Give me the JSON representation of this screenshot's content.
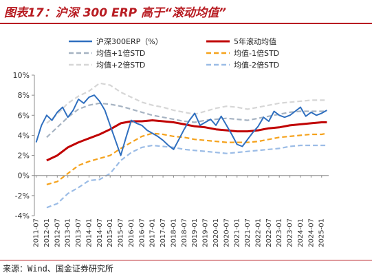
{
  "figure": {
    "title": "图表17：沪深 300 ERP 高于“滚动均值”",
    "source": "来源：Wind、国金证券研究所"
  },
  "chart_data": {
    "type": "line",
    "ylim": [
      -4,
      10
    ],
    "yticks": [
      -4,
      -2,
      0,
      2,
      4,
      6,
      8,
      10
    ],
    "ytick_labels": [
      "-4%",
      "-2%",
      "0%",
      "2%",
      "4%",
      "6%",
      "8%",
      "10%"
    ],
    "xtick_labels": [
      "2011-07",
      "2012-01",
      "2012-07",
      "2013-01",
      "2013-07",
      "2014-01",
      "2014-07",
      "2015-01",
      "2015-07",
      "2016-01",
      "2016-07",
      "2017-01",
      "2017-07",
      "2018-01",
      "2018-07",
      "2019-01",
      "2019-07",
      "2020-01",
      "2020-07",
      "2021-01",
      "2021-07",
      "2022-01",
      "2022-07",
      "2023-01",
      "2023-07",
      "2024-01",
      "2024-07",
      "2025-01"
    ],
    "legend": {
      "placement": "top",
      "columns": 2
    },
    "series": [
      {
        "name": "沪深300ERP（%）",
        "color": "#2f6fbf",
        "style": "solid",
        "points": [
          [
            "2011-07",
            3.3
          ],
          [
            "2011-10",
            5.0
          ],
          [
            "2012-01",
            6.0
          ],
          [
            "2012-04",
            5.5
          ],
          [
            "2012-07",
            6.3
          ],
          [
            "2012-10",
            6.8
          ],
          [
            "2013-01",
            5.8
          ],
          [
            "2013-04",
            6.5
          ],
          [
            "2013-07",
            7.6
          ],
          [
            "2013-10",
            7.2
          ],
          [
            "2014-01",
            7.8
          ],
          [
            "2014-04",
            8.0
          ],
          [
            "2014-07",
            7.4
          ],
          [
            "2014-10",
            6.5
          ],
          [
            "2015-01",
            5.0
          ],
          [
            "2015-04",
            3.5
          ],
          [
            "2015-07",
            2.0
          ],
          [
            "2015-10",
            3.8
          ],
          [
            "2016-01",
            5.5
          ],
          [
            "2016-04",
            5.2
          ],
          [
            "2016-07",
            5.0
          ],
          [
            "2016-10",
            4.5
          ],
          [
            "2017-01",
            4.2
          ],
          [
            "2017-04",
            3.9
          ],
          [
            "2017-07",
            3.5
          ],
          [
            "2017-10",
            3.0
          ],
          [
            "2018-01",
            2.6
          ],
          [
            "2018-04",
            3.6
          ],
          [
            "2018-07",
            4.6
          ],
          [
            "2018-10",
            5.5
          ],
          [
            "2019-01",
            6.2
          ],
          [
            "2019-04",
            5.0
          ],
          [
            "2019-07",
            5.3
          ],
          [
            "2019-10",
            5.6
          ],
          [
            "2020-01",
            5.0
          ],
          [
            "2020-04",
            5.9
          ],
          [
            "2020-07",
            5.0
          ],
          [
            "2020-10",
            4.1
          ],
          [
            "2021-01",
            3.1
          ],
          [
            "2021-04",
            2.9
          ],
          [
            "2021-07",
            3.6
          ],
          [
            "2021-10",
            4.3
          ],
          [
            "2022-01",
            4.9
          ],
          [
            "2022-04",
            5.8
          ],
          [
            "2022-07",
            5.4
          ],
          [
            "2022-10",
            6.4
          ],
          [
            "2023-01",
            6.0
          ],
          [
            "2023-04",
            5.8
          ],
          [
            "2023-07",
            6.0
          ],
          [
            "2023-10",
            6.4
          ],
          [
            "2024-01",
            6.8
          ],
          [
            "2024-04",
            5.9
          ],
          [
            "2024-07",
            6.3
          ],
          [
            "2024-10",
            6.0
          ],
          [
            "2025-01",
            6.2
          ],
          [
            "2025-04",
            6.5
          ]
        ]
      },
      {
        "name": "5年滚动均值",
        "color": "#c00000",
        "style": "solid",
        "points": [
          [
            "2012-01",
            1.5
          ],
          [
            "2012-07",
            2.0
          ],
          [
            "2013-01",
            2.8
          ],
          [
            "2013-07",
            3.3
          ],
          [
            "2014-01",
            3.7
          ],
          [
            "2014-07",
            4.1
          ],
          [
            "2015-01",
            4.6
          ],
          [
            "2015-07",
            5.2
          ],
          [
            "2016-01",
            5.4
          ],
          [
            "2016-07",
            5.4
          ],
          [
            "2017-01",
            5.5
          ],
          [
            "2017-07",
            5.4
          ],
          [
            "2018-01",
            5.3
          ],
          [
            "2018-07",
            5.1
          ],
          [
            "2019-01",
            4.9
          ],
          [
            "2019-07",
            4.8
          ],
          [
            "2020-01",
            4.6
          ],
          [
            "2020-07",
            4.5
          ],
          [
            "2021-01",
            4.4
          ],
          [
            "2021-07",
            4.4
          ],
          [
            "2022-01",
            4.5
          ],
          [
            "2022-07",
            4.7
          ],
          [
            "2023-01",
            4.8
          ],
          [
            "2023-07",
            5.0
          ],
          [
            "2024-01",
            5.1
          ],
          [
            "2024-07",
            5.2
          ],
          [
            "2025-01",
            5.3
          ],
          [
            "2025-04",
            5.3
          ]
        ]
      },
      {
        "name": "均值+1倍STD",
        "color": "#a6b3c2",
        "style": "dashed",
        "points": [
          [
            "2012-01",
            3.8
          ],
          [
            "2012-07",
            4.8
          ],
          [
            "2013-01",
            5.8
          ],
          [
            "2013-07",
            6.6
          ],
          [
            "2014-01",
            7.0
          ],
          [
            "2014-07",
            7.2
          ],
          [
            "2015-01",
            7.1
          ],
          [
            "2015-07",
            6.9
          ],
          [
            "2016-01",
            6.6
          ],
          [
            "2016-07",
            6.3
          ],
          [
            "2017-01",
            6.0
          ],
          [
            "2017-07",
            5.8
          ],
          [
            "2018-01",
            5.6
          ],
          [
            "2018-07",
            5.4
          ],
          [
            "2019-01",
            5.3
          ],
          [
            "2019-07",
            5.5
          ],
          [
            "2020-01",
            5.6
          ],
          [
            "2020-07",
            5.7
          ],
          [
            "2021-01",
            5.6
          ],
          [
            "2021-07",
            5.5
          ],
          [
            "2022-01",
            5.7
          ],
          [
            "2022-07",
            5.9
          ],
          [
            "2023-01",
            6.1
          ],
          [
            "2023-07",
            6.3
          ],
          [
            "2024-01",
            6.4
          ],
          [
            "2024-07",
            6.4
          ],
          [
            "2025-01",
            6.4
          ],
          [
            "2025-04",
            6.4
          ]
        ]
      },
      {
        "name": "均值-1倍STD",
        "color": "#f5a21c",
        "style": "dashed",
        "points": [
          [
            "2012-01",
            -0.9
          ],
          [
            "2012-07",
            -0.6
          ],
          [
            "2013-01",
            0.2
          ],
          [
            "2013-07",
            1.0
          ],
          [
            "2014-01",
            1.4
          ],
          [
            "2014-07",
            1.7
          ],
          [
            "2015-01",
            2.0
          ],
          [
            "2015-07",
            2.7
          ],
          [
            "2016-01",
            3.3
          ],
          [
            "2016-07",
            3.9
          ],
          [
            "2017-01",
            4.2
          ],
          [
            "2017-07",
            4.1
          ],
          [
            "2018-01",
            3.9
          ],
          [
            "2018-07",
            3.8
          ],
          [
            "2019-01",
            3.6
          ],
          [
            "2019-07",
            3.5
          ],
          [
            "2020-01",
            3.4
          ],
          [
            "2020-07",
            3.3
          ],
          [
            "2021-01",
            3.3
          ],
          [
            "2021-07",
            3.3
          ],
          [
            "2022-01",
            3.4
          ],
          [
            "2022-07",
            3.6
          ],
          [
            "2023-01",
            3.8
          ],
          [
            "2023-07",
            3.9
          ],
          [
            "2024-01",
            4.0
          ],
          [
            "2024-07",
            4.1
          ],
          [
            "2025-01",
            4.1
          ],
          [
            "2025-04",
            4.2
          ]
        ]
      },
      {
        "name": "均值+2倍STD",
        "color": "#d6d6d6",
        "style": "dashed",
        "points": [
          [
            "2012-01",
            5.2
          ],
          [
            "2012-07",
            6.1
          ],
          [
            "2013-01",
            7.2
          ],
          [
            "2013-07",
            7.9
          ],
          [
            "2014-01",
            8.4
          ],
          [
            "2014-07",
            9.2
          ],
          [
            "2015-01",
            9.0
          ],
          [
            "2015-07",
            8.3
          ],
          [
            "2016-01",
            7.8
          ],
          [
            "2016-07",
            7.3
          ],
          [
            "2017-01",
            7.0
          ],
          [
            "2017-07",
            6.8
          ],
          [
            "2018-01",
            6.5
          ],
          [
            "2018-07",
            6.3
          ],
          [
            "2019-01",
            6.1
          ],
          [
            "2019-07",
            6.4
          ],
          [
            "2020-01",
            6.7
          ],
          [
            "2020-07",
            6.9
          ],
          [
            "2021-01",
            6.8
          ],
          [
            "2021-07",
            6.6
          ],
          [
            "2022-01",
            6.8
          ],
          [
            "2022-07",
            7.0
          ],
          [
            "2023-01",
            7.2
          ],
          [
            "2023-07",
            7.3
          ],
          [
            "2024-01",
            7.4
          ],
          [
            "2024-07",
            7.5
          ],
          [
            "2025-01",
            7.5
          ],
          [
            "2025-04",
            7.5
          ]
        ]
      },
      {
        "name": "均值-2倍STD",
        "color": "#9bbce6",
        "style": "dashed",
        "points": [
          [
            "2012-01",
            -3.2
          ],
          [
            "2012-07",
            -2.8
          ],
          [
            "2013-01",
            -1.8
          ],
          [
            "2013-07",
            -1.2
          ],
          [
            "2014-01",
            -0.5
          ],
          [
            "2014-07",
            -0.4
          ],
          [
            "2015-01",
            0.2
          ],
          [
            "2015-07",
            1.5
          ],
          [
            "2016-01",
            2.3
          ],
          [
            "2016-07",
            2.8
          ],
          [
            "2017-01",
            3.0
          ],
          [
            "2017-07",
            2.9
          ],
          [
            "2018-01",
            2.8
          ],
          [
            "2018-07",
            2.6
          ],
          [
            "2019-01",
            2.5
          ],
          [
            "2019-07",
            2.4
          ],
          [
            "2020-01",
            2.3
          ],
          [
            "2020-07",
            2.2
          ],
          [
            "2021-01",
            2.3
          ],
          [
            "2021-07",
            2.4
          ],
          [
            "2022-01",
            2.5
          ],
          [
            "2022-07",
            2.6
          ],
          [
            "2023-01",
            2.7
          ],
          [
            "2023-07",
            2.9
          ],
          [
            "2024-01",
            3.0
          ],
          [
            "2024-07",
            3.0
          ],
          [
            "2025-01",
            3.0
          ],
          [
            "2025-04",
            3.0
          ]
        ]
      }
    ]
  }
}
